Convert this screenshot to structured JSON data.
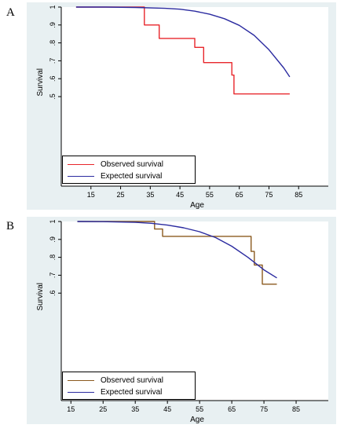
{
  "figure": {
    "panels": [
      {
        "letter": "A",
        "legend": [
          "Observed survival",
          "Expected survival"
        ]
      },
      {
        "letter": "B",
        "legend": [
          "Observed survival",
          "Expected survival"
        ]
      }
    ]
  },
  "chart_data": [
    {
      "type": "line",
      "panel": "A",
      "title": "",
      "xlabel": "Age",
      "ylabel": "Survival",
      "xlim": [
        5,
        95
      ],
      "ylim": [
        0,
        1
      ],
      "xticks": [
        15,
        25,
        35,
        45,
        55,
        65,
        75,
        85
      ],
      "yticks": [
        0.5,
        0.6,
        0.7,
        0.8,
        0.9,
        1
      ],
      "ytick_labels": [
        ".5",
        ".6",
        ".7",
        ".8",
        ".9",
        "1"
      ],
      "legend_position": "bottom-left",
      "grid": false,
      "series": [
        {
          "name": "Observed survival",
          "color": "#e8262b",
          "step": true,
          "x": [
            10,
            33,
            38,
            50,
            53,
            62.5,
            63.2,
            82
          ],
          "y": [
            1.0,
            0.9,
            0.825,
            0.775,
            0.69,
            0.62,
            0.515,
            0.515
          ]
        },
        {
          "name": "Expected survival",
          "color": "#2b2ba0",
          "step": false,
          "x": [
            10,
            20,
            30,
            40,
            45,
            50,
            55,
            60,
            65,
            70,
            75,
            80,
            82
          ],
          "y": [
            1.0,
            1.0,
            0.998,
            0.993,
            0.988,
            0.977,
            0.96,
            0.935,
            0.898,
            0.842,
            0.762,
            0.66,
            0.61
          ]
        }
      ]
    },
    {
      "type": "line",
      "panel": "B",
      "title": "",
      "xlabel": "Age",
      "ylabel": "Survival",
      "xlim": [
        12,
        95
      ],
      "ylim": [
        0,
        1
      ],
      "xticks": [
        15,
        25,
        35,
        45,
        55,
        65,
        75,
        85
      ],
      "yticks": [
        0.6,
        0.7,
        0.8,
        0.9,
        1
      ],
      "ytick_labels": [
        ".6",
        ".7",
        ".8",
        ".9",
        "1"
      ],
      "legend_position": "bottom-left",
      "grid": false,
      "series": [
        {
          "name": "Observed survival",
          "color": "#8b5a1f",
          "step": true,
          "x": [
            17,
            41,
            43.5,
            71,
            72,
            74.5,
            79
          ],
          "y": [
            1.0,
            0.958,
            0.917,
            0.833,
            0.757,
            0.65,
            0.65
          ]
        },
        {
          "name": "Expected survival",
          "color": "#2b2ba0",
          "step": false,
          "x": [
            17,
            25,
            35,
            40,
            45,
            50,
            55,
            60,
            65,
            70,
            75,
            79
          ],
          "y": [
            1.0,
            0.999,
            0.995,
            0.99,
            0.98,
            0.965,
            0.943,
            0.91,
            0.862,
            0.8,
            0.73,
            0.685
          ]
        }
      ]
    }
  ]
}
